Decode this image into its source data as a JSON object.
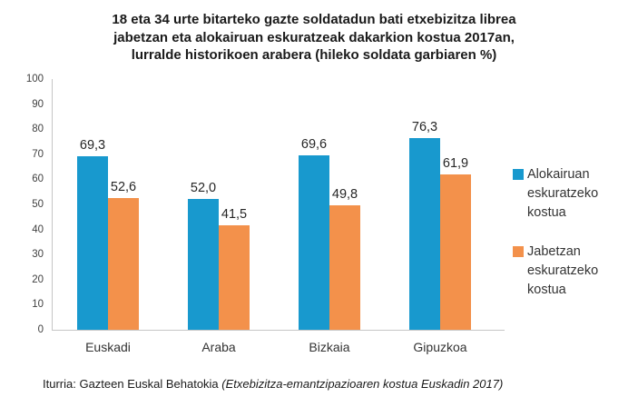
{
  "title": {
    "lines": [
      "18 eta 34 urte bitarteko gazte soldatadun bati etxebizitza librea",
      "jabetzan eta alokairuan eskuratzeak dakarkion kostua 2017an,",
      "lurralde historikoen arabera (hileko soldata garbiaren %)"
    ]
  },
  "chart_data": {
    "type": "bar",
    "title": "18 eta 34 urte bitarteko gazte soldatadun bati etxebizitza librea jabetzan eta alokairuan eskuratzeak dakarkion kostua 2017an, lurralde historikoen arabera (hileko soldata garbiaren %)",
    "categories": [
      "Euskadi",
      "Araba",
      "Bizkaia",
      "Gipuzkoa"
    ],
    "series": [
      {
        "name": "Alokairuan eskuratzeko kostua",
        "color": "#1899CE",
        "values": [
          69.3,
          52.0,
          69.6,
          76.3
        ],
        "labels": [
          "69,3",
          "52,0",
          "69,6",
          "76,3"
        ]
      },
      {
        "name": "Jabetzan eskuratzeko kostua",
        "color": "#F3914B",
        "values": [
          52.6,
          41.5,
          49.8,
          61.9
        ],
        "labels": [
          "52,6",
          "41,5",
          "49,8",
          "61,9"
        ]
      }
    ],
    "xlabel": "",
    "ylabel": "",
    "ylim": [
      0,
      100
    ],
    "yticks": [
      0,
      10,
      20,
      30,
      40,
      50,
      60,
      70,
      80,
      90,
      100
    ],
    "grid": false,
    "legend_position": "right"
  },
  "source": {
    "prefix": "Iturria: Gazteen Euskal Behatokia ",
    "italic": "(Etxebizitza-emantzipazioaren kostua Euskadin 2017)"
  }
}
